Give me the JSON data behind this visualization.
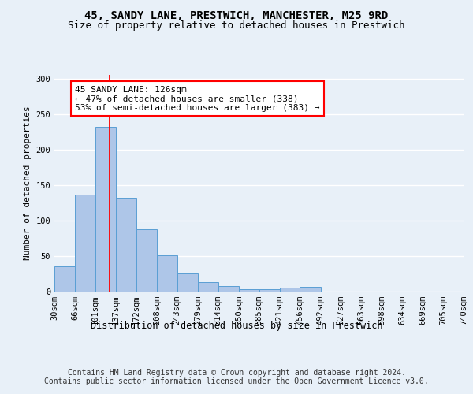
{
  "title1": "45, SANDY LANE, PRESTWICH, MANCHESTER, M25 9RD",
  "title2": "Size of property relative to detached houses in Prestwich",
  "xlabel": "Distribution of detached houses by size in Prestwich",
  "ylabel": "Number of detached properties",
  "footer": "Contains HM Land Registry data © Crown copyright and database right 2024.\nContains public sector information licensed under the Open Government Licence v3.0.",
  "bin_labels": [
    "30sqm",
    "66sqm",
    "101sqm",
    "137sqm",
    "172sqm",
    "208sqm",
    "243sqm",
    "279sqm",
    "314sqm",
    "350sqm",
    "385sqm",
    "421sqm",
    "456sqm",
    "492sqm",
    "527sqm",
    "563sqm",
    "598sqm",
    "634sqm",
    "669sqm",
    "705sqm",
    "740sqm"
  ],
  "bin_edges": [
    30,
    66,
    101,
    137,
    172,
    208,
    243,
    279,
    314,
    350,
    385,
    421,
    456,
    492,
    527,
    563,
    598,
    634,
    669,
    705,
    740
  ],
  "bar_heights": [
    35,
    136,
    232,
    132,
    88,
    51,
    25,
    13,
    8,
    3,
    3,
    6,
    7,
    0,
    0,
    0,
    0,
    0,
    0,
    0,
    2
  ],
  "bar_color": "#aec6e8",
  "bar_edgecolor": "#5a9fd4",
  "vline_x": 126,
  "vline_color": "red",
  "annotation_text": "45 SANDY LANE: 126sqm\n← 47% of detached houses are smaller (338)\n53% of semi-detached houses are larger (383) →",
  "annotation_box_color": "white",
  "annotation_box_edgecolor": "red",
  "ylim": [
    0,
    305
  ],
  "background_color": "#e8f0f8",
  "axes_background": "#e8f0f8",
  "grid_color": "white",
  "title1_fontsize": 10,
  "title2_fontsize": 9,
  "xlabel_fontsize": 8.5,
  "ylabel_fontsize": 8,
  "tick_fontsize": 7.5,
  "annotation_fontsize": 8,
  "footer_fontsize": 7
}
